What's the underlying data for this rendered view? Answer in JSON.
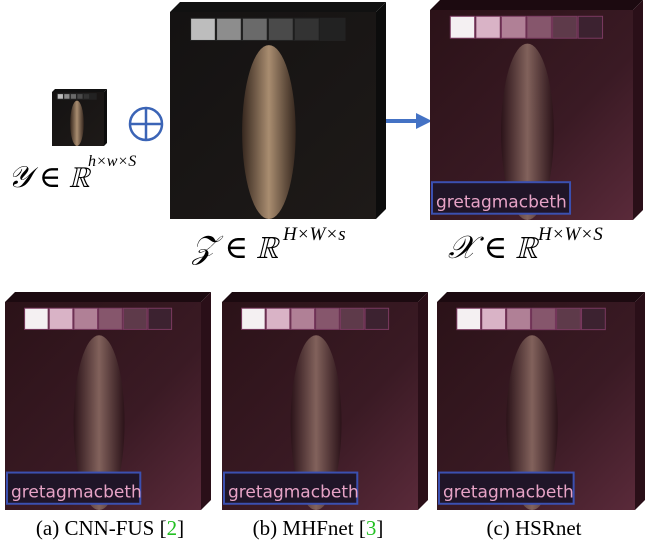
{
  "panels": {
    "lr": {
      "base": "𝒴 ∈ ℝ",
      "sup": "h×w×S"
    },
    "pan": {
      "base": "𝒵 ∈ ℝ",
      "sup": "H×W×s"
    },
    "gt": {
      "base": "𝒳 ∈ ℝ",
      "sup": "H×W×S"
    }
  },
  "overlay_text": "gretagmacbeth",
  "captions": [
    {
      "label": "(a) CNN-FUS ",
      "ref": {
        "open": "[",
        "num": "2",
        "close": "]"
      }
    },
    {
      "label": "(b) MHFnet ",
      "ref": {
        "open": "[",
        "num": "3",
        "close": "]"
      }
    },
    {
      "label": "(c) HSRnet"
    }
  ]
}
